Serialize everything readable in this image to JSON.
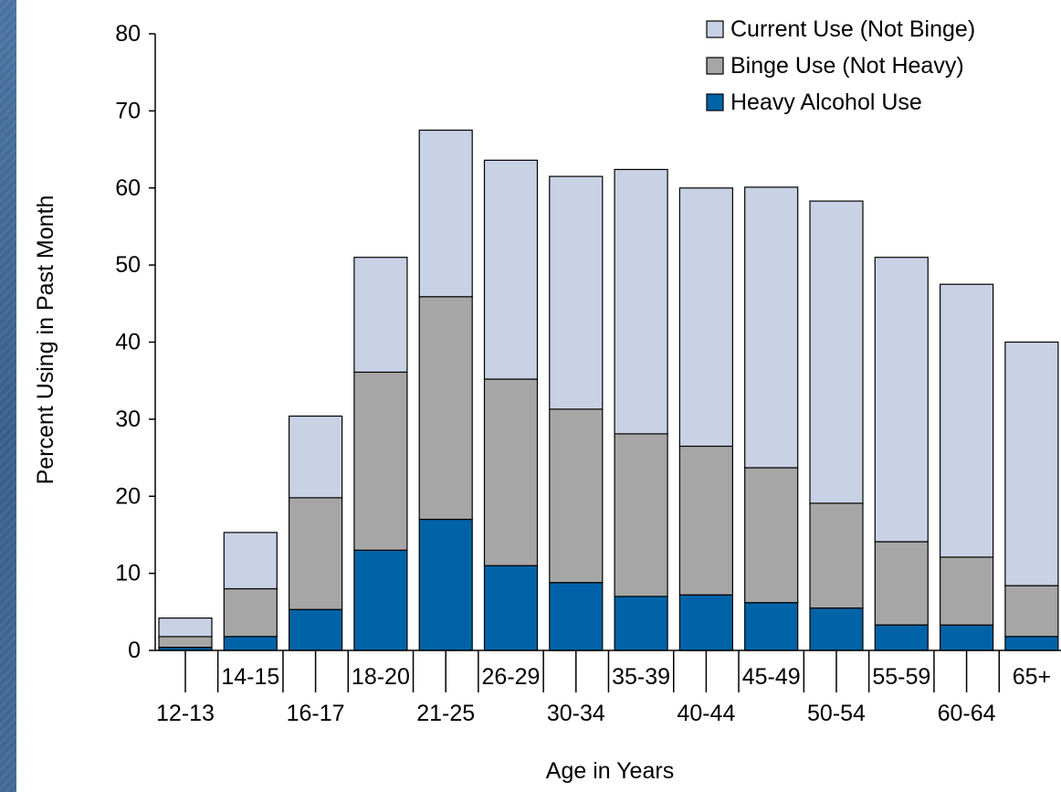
{
  "chart_data": {
    "type": "bar",
    "stacked": true,
    "categories": [
      "12-13",
      "14-15",
      "16-17",
      "18-20",
      "21-25",
      "26-29",
      "30-34",
      "35-39",
      "40-44",
      "45-49",
      "50-54",
      "55-59",
      "60-64",
      "65+"
    ],
    "series": [
      {
        "name": "Heavy Alcohol Use",
        "color": "#0063a8",
        "values": [
          0.4,
          1.8,
          5.3,
          13.0,
          17.0,
          11.0,
          8.8,
          7.0,
          7.2,
          6.2,
          5.5,
          3.3,
          3.3,
          1.8
        ]
      },
      {
        "name": "Binge Use (Not Heavy)",
        "color": "#a6a6a6",
        "values": [
          1.4,
          6.2,
          14.5,
          23.1,
          28.9,
          24.2,
          22.5,
          21.1,
          19.3,
          17.5,
          13.6,
          10.8,
          8.8,
          6.6
        ]
      },
      {
        "name": "Current Use (Not Binge)",
        "color": "#c8d2e4",
        "values": [
          2.4,
          7.3,
          10.6,
          14.9,
          21.6,
          28.4,
          30.2,
          34.3,
          33.5,
          36.4,
          39.2,
          36.9,
          35.4,
          31.6
        ]
      }
    ],
    "legend_order": [
      "Current Use (Not Binge)",
      "Binge Use (Not Heavy)",
      "Heavy Alcohol Use"
    ],
    "legend_position": "top-right",
    "xlabel": "Age in Years",
    "ylabel": "Percent Using in Past Month",
    "ylim": [
      0,
      80
    ],
    "yticks": [
      0,
      10,
      20,
      30,
      40,
      50,
      60,
      70,
      80
    ],
    "grid": false
  }
}
